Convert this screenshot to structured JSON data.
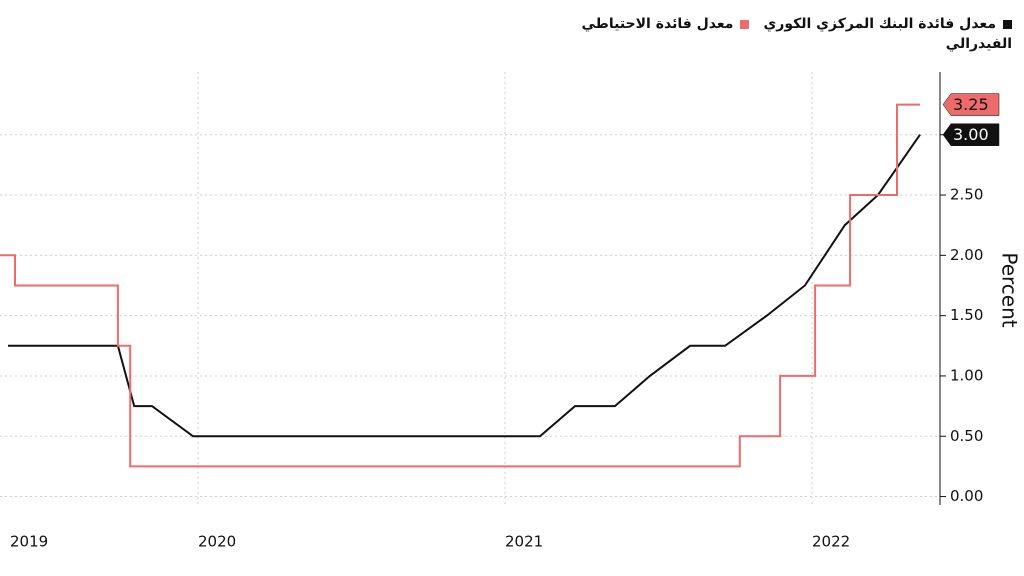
{
  "chart_data": {
    "type": "line",
    "y_label": "Percent",
    "xlim": [
      2019.355,
      2022.417
    ],
    "xticks": [
      2019,
      2020,
      2021,
      2022
    ],
    "ylim": [
      -0.07,
      3.52
    ],
    "yticks": [
      {
        "value": 0,
        "label": "0.00"
      },
      {
        "value": 0.5,
        "label": "0.50"
      },
      {
        "value": 1,
        "label": "1.00"
      },
      {
        "value": 1.5,
        "label": "1.50"
      },
      {
        "value": 2,
        "label": "2.00"
      },
      {
        "value": 2.5,
        "label": "2.50"
      },
      {
        "value": 3,
        "label": "3.00"
      }
    ],
    "grid": true,
    "series": [
      {
        "name": "معدل فائدة البنك المركزي الكوري",
        "color": "#111111",
        "x": [
          2019.381,
          2019.739,
          2019.792,
          2019.85,
          2019.984,
          2021.114,
          2021.228,
          2021.358,
          2021.472,
          2021.603,
          2021.717,
          2021.853,
          2021.977,
          2022.107,
          2022.215,
          2022.352
        ],
        "values": [
          1.25,
          1.25,
          0.75,
          0.75,
          0.5,
          0.5,
          0.75,
          0.75,
          1.0,
          1.25,
          1.25,
          1.5,
          1.75,
          2.25,
          2.5,
          3.0
        ],
        "value_labels": [
          null,
          null,
          null,
          null,
          null,
          null,
          null,
          null,
          null,
          null,
          null,
          null,
          null,
          null,
          null,
          "3.00"
        ]
      },
      {
        "name": "معدل فائدة الاحتياطي الفيدرالي",
        "color": "#ee6b6b",
        "x": [
          2019.355,
          2019.404,
          2019.404,
          2019.739,
          2019.739,
          2019.779,
          2019.779,
          2021.765,
          2021.765,
          2021.896,
          2021.896,
          2022.01,
          2022.01,
          2022.124,
          2022.124,
          2022.277,
          2022.277,
          2022.352
        ],
        "values": [
          2.0,
          2.0,
          1.75,
          1.75,
          1.25,
          1.25,
          0.25,
          0.25,
          0.5,
          0.5,
          1.0,
          1.0,
          1.75,
          1.75,
          2.5,
          2.5,
          3.25,
          3.25
        ],
        "value_labels": [
          null,
          null,
          null,
          null,
          null,
          null,
          null,
          null,
          null,
          null,
          null,
          null,
          null,
          null,
          null,
          null,
          null,
          "3.25"
        ]
      }
    ]
  }
}
